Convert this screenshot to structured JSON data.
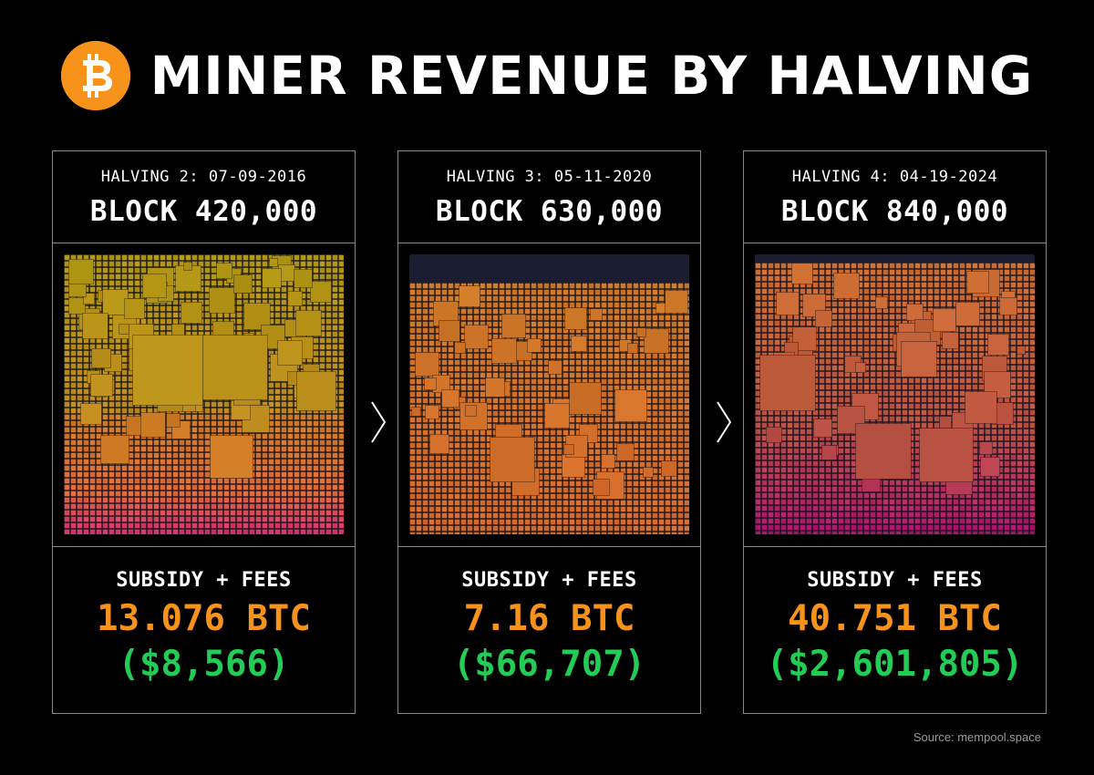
{
  "title": "MINER REVENUE BY HALVING",
  "colors": {
    "background": "#000000",
    "btc_orange": "#f7931a",
    "usd_green": "#22cc55",
    "border": "#8a8a8a",
    "empty_block_space": "#1b1d33"
  },
  "icons": {
    "logo": "bitcoin-logo-icon",
    "separator": "chevron-right-icon"
  },
  "panels": [
    {
      "halving": "HALVING 2: 07-09-2016",
      "block": "BLOCK 420,000",
      "caption": "SUBSIDY + FEES",
      "btc": "13.076 BTC",
      "usd": "($8,566)",
      "palette": "yellow-to-pink",
      "block_fill_fraction": 1.0
    },
    {
      "halving": "HALVING 3: 05-11-2020",
      "block": "BLOCK 630,000",
      "caption": "SUBSIDY + FEES",
      "btc": "7.16 BTC",
      "usd": "($66,707)",
      "palette": "orange",
      "block_fill_fraction": 0.9
    },
    {
      "halving": "HALVING 4: 04-19-2024",
      "block": "BLOCK 840,000",
      "caption": "SUBSIDY + FEES",
      "btc": "40.751 BTC",
      "usd": "($2,601,805)",
      "palette": "orange-to-magenta",
      "block_fill_fraction": 0.97
    }
  ],
  "source": "Source: mempool.space"
}
